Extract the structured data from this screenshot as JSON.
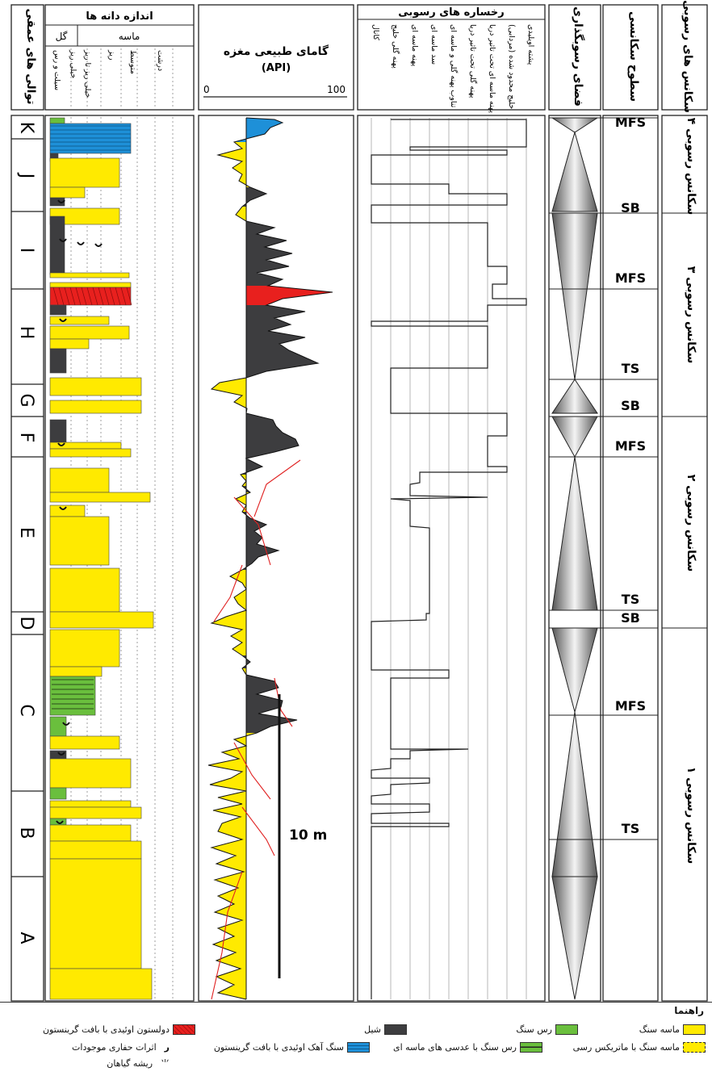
{
  "headers": {
    "sequences": "سکانس های رسوبی",
    "surfaces": "سطوح سکانسی",
    "accommodation": "فضای رسوبگذاری",
    "facies": "رخساره های رسوبی",
    "gamma_title": "گامای طبیعی مغزه",
    "gamma_unit": "(API)",
    "grain_size": "اندازه دانه ها",
    "intervals": "توالی های عمقی"
  },
  "gamma_scale": {
    "min": "0",
    "max": "100"
  },
  "grain": {
    "mud": "گل",
    "sand": "ماسه",
    "classes": [
      "سیلت و رس",
      "خیلی ریز",
      "خیلی ریز تا ریز",
      "ریز",
      "متوسط",
      "درشت"
    ]
  },
  "facies_labels": [
    "کانال",
    "پهنه گلی خلیج",
    "پهنه ماسه ای",
    "سد ماسه ای",
    "تناوب پهنه گلی و ماسه ای",
    "پهنه گلی تحت تاثیر دریا",
    "پهنه ماسه ای تحت تاثیر دریا",
    "(مردابی) خلیج محدود شده",
    "پشته اویلیدی"
  ],
  "intervals": [
    "K",
    "J",
    "I",
    "H",
    "G",
    "F",
    "E",
    "D",
    "C",
    "B",
    "A"
  ],
  "surfaces": [
    "MFS",
    "SB",
    "MFS",
    "TS",
    "SB",
    "MFS",
    "TS",
    "SB",
    "MFS",
    "TS"
  ],
  "sequences": [
    "سکانس رسوبی ۴",
    "سکانس رسوبی ۳",
    "سکانس رسوبی ۲",
    "سکانس رسوبی ۱"
  ],
  "scale_bar": "10 m",
  "legend": {
    "title": "راهنما",
    "items": [
      "ماسه سنگ",
      "رس سنگ",
      "شیل",
      "دولستون اوئیدی با بافت گرینستون",
      "ماسه سنگ با ماتریکس رسی",
      "رس سنگ با عدسی های ماسه ای",
      "سنگ آهک اوئیدی با بافت گرینستون",
      "اثرات حفاری موجودات",
      "ریشه گیاهان"
    ]
  },
  "colors": {
    "sandstone": "#ffea00",
    "claystone": "#6abf3d",
    "shale": "#3d3d3f",
    "dolostone": "#e8201e",
    "limestone": "#1e90d8"
  }
}
